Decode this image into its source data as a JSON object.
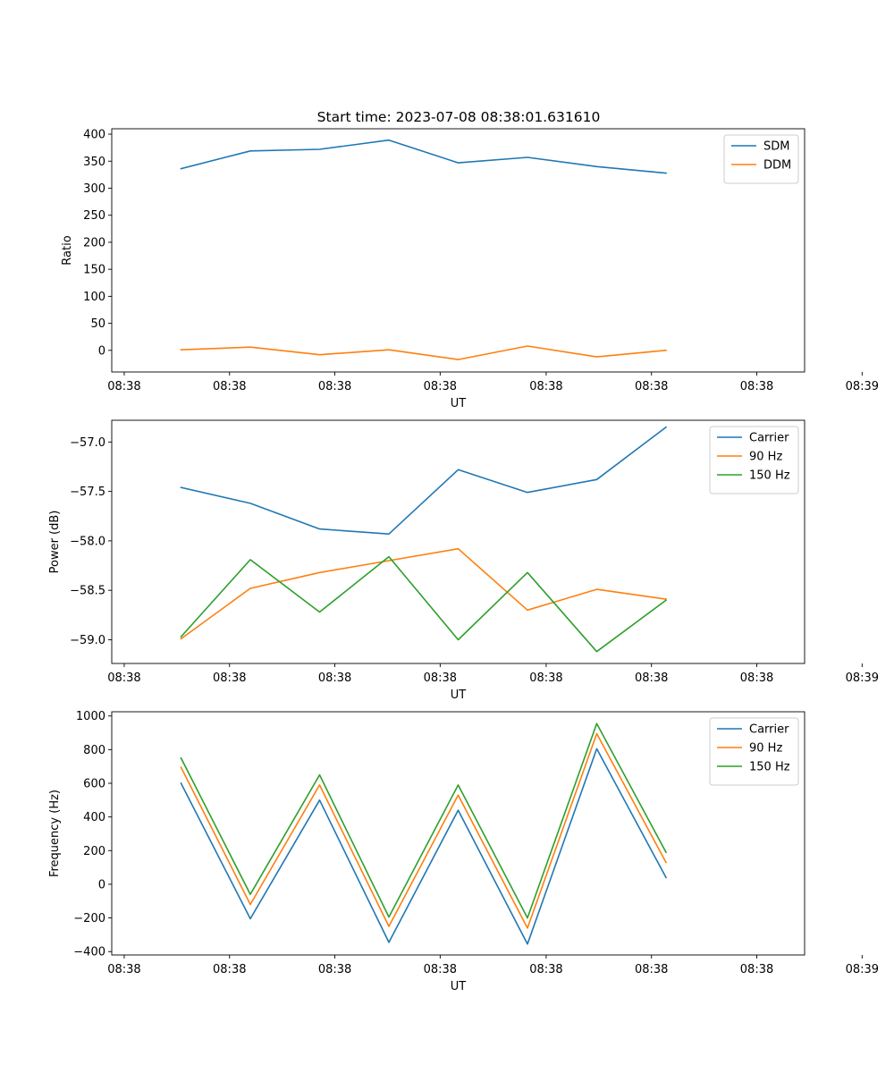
{
  "figure_title": "Start time: 2023-07-08 08:38:01.631610",
  "chart_data": [
    {
      "type": "line",
      "title": "Start time: 2023-07-08 08:38:01.631610",
      "xlabel": "UT",
      "ylabel": "Ratio",
      "x": [
        1,
        2,
        3,
        4,
        5,
        6,
        7,
        8
      ],
      "xlim": [
        0,
        10
      ],
      "x_ticks": [
        {
          "value": 0.18,
          "label": "08:38"
        },
        {
          "value": 1.7,
          "label": "08:38"
        },
        {
          "value": 3.22,
          "label": "08:38"
        },
        {
          "value": 4.74,
          "label": "08:38"
        },
        {
          "value": 6.27,
          "label": "08:38"
        },
        {
          "value": 7.79,
          "label": "08:38"
        },
        {
          "value": 9.31,
          "label": "08:38"
        },
        {
          "value": 10.83,
          "label": "08:39"
        }
      ],
      "ylim": [
        -40,
        410
      ],
      "y_ticks": [
        {
          "value": 0,
          "label": "0"
        },
        {
          "value": 50,
          "label": "50"
        },
        {
          "value": 100,
          "label": "100"
        },
        {
          "value": 150,
          "label": "150"
        },
        {
          "value": 200,
          "label": "200"
        },
        {
          "value": 250,
          "label": "250"
        },
        {
          "value": 300,
          "label": "300"
        },
        {
          "value": 350,
          "label": "350"
        },
        {
          "value": 400,
          "label": "400"
        }
      ],
      "legend_position": "top-right",
      "series": [
        {
          "name": "SDM",
          "color": "#1f77b4",
          "values": [
            336,
            369,
            372,
            389,
            347,
            357,
            340,
            328
          ]
        },
        {
          "name": "DDM",
          "color": "#ff7f0e",
          "values": [
            1,
            6,
            -8,
            1,
            -17,
            8,
            -12,
            0
          ]
        }
      ]
    },
    {
      "type": "line",
      "title": "",
      "xlabel": "UT",
      "ylabel": "Power (dB)",
      "x": [
        1,
        2,
        3,
        4,
        5,
        6,
        7,
        8
      ],
      "xlim": [
        0,
        10
      ],
      "x_ticks": [
        {
          "value": 0.18,
          "label": "08:38"
        },
        {
          "value": 1.7,
          "label": "08:38"
        },
        {
          "value": 3.22,
          "label": "08:38"
        },
        {
          "value": 4.74,
          "label": "08:38"
        },
        {
          "value": 6.27,
          "label": "08:38"
        },
        {
          "value": 7.79,
          "label": "08:38"
        },
        {
          "value": 9.31,
          "label": "08:38"
        },
        {
          "value": 10.83,
          "label": "08:39"
        }
      ],
      "ylim": [
        -59.24,
        -56.78
      ],
      "y_ticks": [
        {
          "value": -59.0,
          "label": "−59.0"
        },
        {
          "value": -58.5,
          "label": "−58.5"
        },
        {
          "value": -58.0,
          "label": "−58.0"
        },
        {
          "value": -57.5,
          "label": "−57.5"
        },
        {
          "value": -57.0,
          "label": "−57.0"
        }
      ],
      "legend_position": "top-right",
      "series": [
        {
          "name": "Carrier",
          "color": "#1f77b4",
          "values": [
            -57.46,
            -57.62,
            -57.88,
            -57.93,
            -57.28,
            -57.51,
            -57.38,
            -56.85
          ]
        },
        {
          "name": "90 Hz",
          "color": "#ff7f0e",
          "values": [
            -58.99,
            -58.48,
            -58.32,
            -58.2,
            -58.08,
            -58.7,
            -58.49,
            -58.59
          ]
        },
        {
          "name": "150 Hz",
          "color": "#2ca02c",
          "values": [
            -58.97,
            -58.19,
            -58.72,
            -58.16,
            -59.0,
            -58.32,
            -59.12,
            -58.6
          ]
        }
      ]
    },
    {
      "type": "line",
      "title": "",
      "xlabel": "UT",
      "ylabel": "Frequency (Hz)",
      "x": [
        1,
        2,
        3,
        4,
        5,
        6,
        7,
        8
      ],
      "xlim": [
        0,
        10
      ],
      "x_ticks": [
        {
          "value": 0.18,
          "label": "08:38"
        },
        {
          "value": 1.7,
          "label": "08:38"
        },
        {
          "value": 3.22,
          "label": "08:38"
        },
        {
          "value": 4.74,
          "label": "08:38"
        },
        {
          "value": 6.27,
          "label": "08:38"
        },
        {
          "value": 7.79,
          "label": "08:38"
        },
        {
          "value": 9.31,
          "label": "08:38"
        },
        {
          "value": 10.83,
          "label": "08:39"
        }
      ],
      "ylim": [
        -420,
        1025
      ],
      "y_ticks": [
        {
          "value": -400,
          "label": "−400"
        },
        {
          "value": -200,
          "label": "−200"
        },
        {
          "value": 0,
          "label": "0"
        },
        {
          "value": 200,
          "label": "200"
        },
        {
          "value": 400,
          "label": "400"
        },
        {
          "value": 600,
          "label": "600"
        },
        {
          "value": 800,
          "label": "800"
        },
        {
          "value": 1000,
          "label": "1000"
        }
      ],
      "legend_position": "top-right",
      "series": [
        {
          "name": "Carrier",
          "color": "#1f77b4",
          "values": [
            600,
            -205,
            500,
            -345,
            440,
            -355,
            805,
            40
          ]
        },
        {
          "name": "90 Hz",
          "color": "#ff7f0e",
          "values": [
            695,
            -120,
            590,
            -250,
            530,
            -260,
            895,
            130
          ]
        },
        {
          "name": "150 Hz",
          "color": "#2ca02c",
          "values": [
            750,
            -60,
            650,
            -195,
            590,
            -200,
            955,
            190
          ]
        }
      ]
    }
  ]
}
